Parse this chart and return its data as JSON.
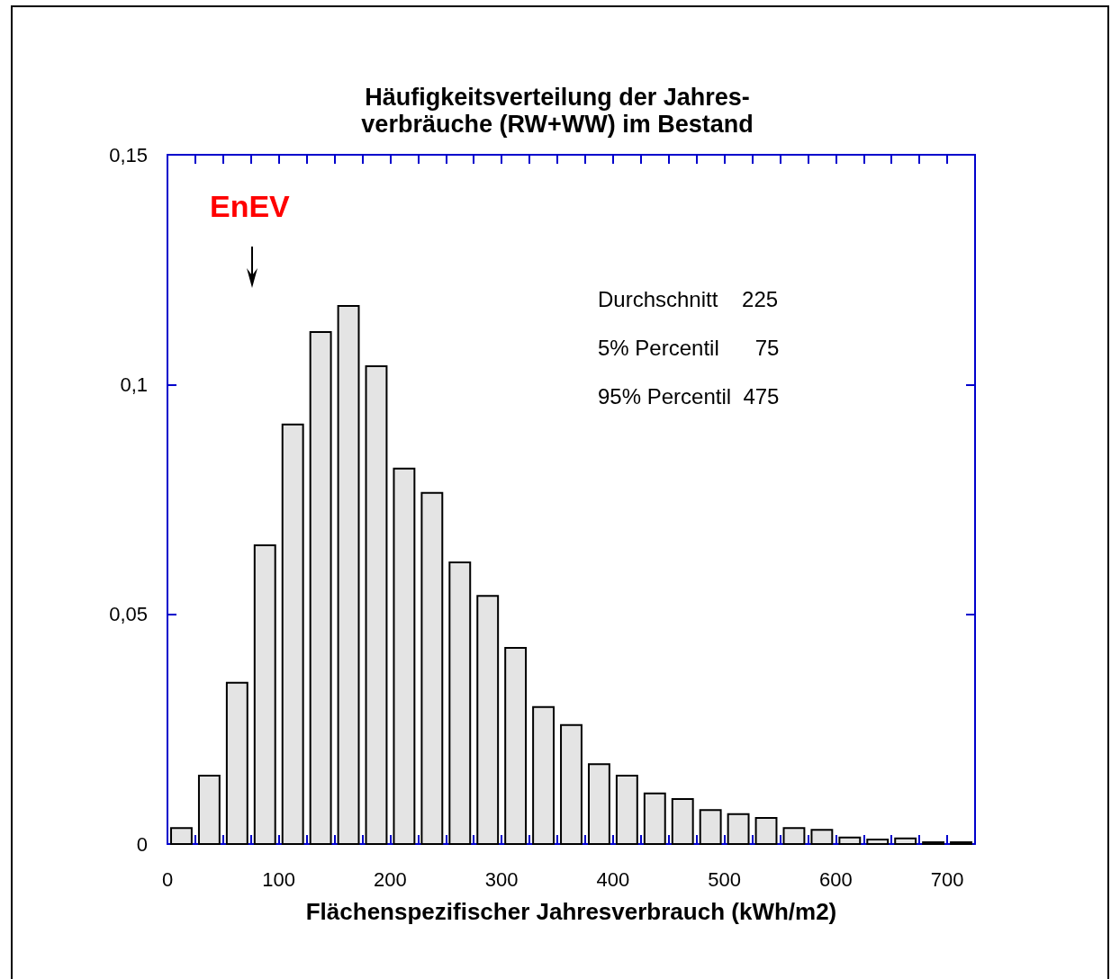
{
  "chart_data": {
    "type": "histogram",
    "title": "Häufigkeitsverteilung der Jahres-\nverbräuche (RW+WW) im Bestand",
    "xlabel": "Flächenspezifischer Jahresverbrauch (kWh/m2)",
    "bins": [
      0,
      25,
      50,
      75,
      100,
      125,
      150,
      175,
      200,
      225,
      250,
      275,
      300,
      325,
      350,
      375,
      400,
      425,
      450,
      475,
      500,
      525,
      550,
      575,
      600,
      625,
      650,
      675,
      700,
      725
    ],
    "values": [
      0.0035,
      0.0149,
      0.0351,
      0.065,
      0.0913,
      0.1114,
      0.1171,
      0.104,
      0.0817,
      0.0764,
      0.0613,
      0.054,
      0.0427,
      0.0298,
      0.0259,
      0.0174,
      0.0149,
      0.011,
      0.0098,
      0.0074,
      0.0065,
      0.0057,
      0.0035,
      0.0031,
      0.0014,
      0.001,
      0.0012,
      0.0004,
      0.0004
    ],
    "color": "#e4e4e4",
    "xlim": [
      0,
      725
    ],
    "xticks": [
      0,
      {
        "value": 25,
        "label": null
      },
      {
        "value": 50,
        "label": null
      },
      {
        "value": 75,
        "label": null
      },
      100,
      {
        "value": 125,
        "label": null
      },
      {
        "value": 150,
        "label": null
      },
      {
        "value": 175,
        "label": null
      },
      200,
      {
        "value": 225,
        "label": null
      },
      {
        "value": 250,
        "label": null
      },
      {
        "value": 275,
        "label": null
      },
      300,
      {
        "value": 325,
        "label": null
      },
      {
        "value": 350,
        "label": null
      },
      {
        "value": 375,
        "label": null
      },
      400,
      {
        "value": 425,
        "label": null
      },
      {
        "value": 450,
        "label": null
      },
      {
        "value": 475,
        "label": null
      },
      500,
      {
        "value": 525,
        "label": null
      },
      {
        "value": 550,
        "label": null
      },
      {
        "value": 575,
        "label": null
      },
      600,
      {
        "value": 625,
        "label": null
      },
      {
        "value": 650,
        "label": null
      },
      {
        "value": 675,
        "label": null
      },
      700
    ],
    "ylim": [
      0,
      0.15
    ],
    "yticks": [
      0,
      {
        "value": 0.05,
        "label": "0,05"
      },
      {
        "value": 0.1,
        "label": "0,1"
      },
      {
        "value": 0.15,
        "label": "0,15"
      }
    ],
    "grid": false,
    "annotations": [
      "EnEV",
      "Durchschnitt    225",
      "5% Percentil      75",
      "95% Percentil  475"
    ]
  }
}
